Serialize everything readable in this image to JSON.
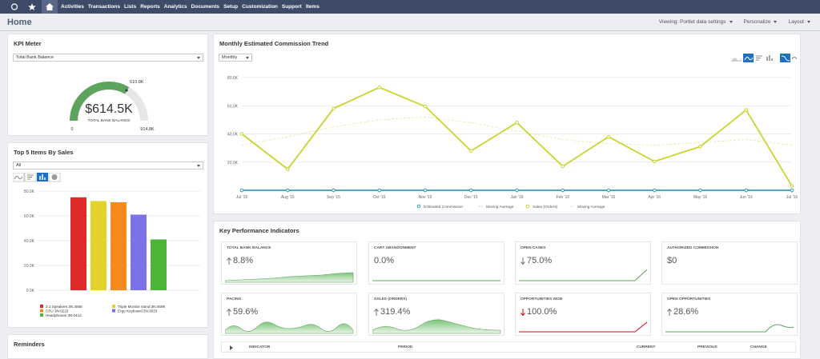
{
  "nav": {
    "items": [
      "Activities",
      "Transactions",
      "Lists",
      "Reports",
      "Analytics",
      "Documents",
      "Setup",
      "Customization",
      "Support",
      "Items"
    ]
  },
  "header": {
    "title": "Home",
    "controls": [
      "Viewing: Portlet data settings",
      "Personalize",
      "Layout"
    ]
  },
  "kpi_meter": {
    "title": "KPI Meter",
    "select": "Total Bank Balance",
    "gauge": {
      "min": 0,
      "max": {
        "value": 914.8,
        "label": "914.8K"
      },
      "value": {
        "value": 614.5,
        "label": "$614.5K"
      },
      "target": {
        "value": 610.8,
        "label": "610.8K"
      },
      "caption": "TOTAL BANK BALANCE",
      "color": "#5ea35b"
    }
  },
  "top_items": {
    "title": "Top 5 Items By Sales",
    "select": "All"
  },
  "commission": {
    "title": "Monthly Estimated Commission Trend",
    "select": "Monthly"
  },
  "chart_data": [
    {
      "type": "bar",
      "categories": [
        "2.1 Speakers 3N:4868",
        "Triple Monitor stand 3N:4698",
        "CPU 3N:0223",
        "Ergo Keyboard 3N:3033",
        "Headphones 3N:0412"
      ],
      "values": [
        75000,
        72000,
        71000,
        61000,
        41000
      ],
      "colors": [
        "#e02a2a",
        "#e3d22c",
        "#f58a1f",
        "#7b72e8",
        "#4bb53a"
      ],
      "ylim": [
        0,
        80000
      ],
      "yticks": [
        {
          "value": 0,
          "label": "0.0K"
        },
        {
          "value": 20000,
          "label": "20.0K"
        },
        {
          "value": 40000,
          "label": "40.0K"
        },
        {
          "value": 60000,
          "label": "60.0K"
        },
        {
          "value": 80000,
          "label": "80.0K"
        }
      ],
      "grid": true
    },
    {
      "type": "line",
      "categories": [
        "Jul '15",
        "Aug '15",
        "Sep '15",
        "Oct '15",
        "Nov '15",
        "Dec '15",
        "Jan '16",
        "Feb '16",
        "Mar '16",
        "Apr '16",
        "May '16",
        "Jun '16",
        "Jul '16"
      ],
      "series": [
        {
          "name": "Estimated Commission",
          "color": "#3a9ab5",
          "marker": true,
          "dashed": false,
          "values": [
            0,
            0,
            0,
            0,
            0,
            0,
            0,
            0,
            0,
            0,
            0,
            0,
            0
          ]
        },
        {
          "name": "Moving Average",
          "color": "#a9d7e4",
          "marker": false,
          "dashed": true,
          "values": [
            0,
            0,
            0,
            0,
            0,
            0,
            0,
            0,
            0,
            0,
            0,
            0,
            0
          ]
        },
        {
          "name": "Sales (Orders)",
          "color": "#c9d42b",
          "marker": true,
          "dashed": false,
          "values": [
            40000,
            15000,
            58000,
            73000,
            59500,
            28000,
            48000,
            17000,
            38000,
            20500,
            31000,
            57000,
            3000
          ]
        },
        {
          "name": "Moving Average",
          "color": "#e3e7a6",
          "marker": false,
          "dashed": true,
          "values": [
            32000,
            38000,
            45000,
            50000,
            52000,
            48000,
            42000,
            36000,
            33000,
            32000,
            34000,
            36000,
            32000
          ]
        }
      ],
      "ylim": [
        0,
        80000
      ],
      "yticks": [
        {
          "value": 20000,
          "label": "20.0K"
        },
        {
          "value": 40000,
          "label": "40.0K"
        },
        {
          "value": 60000,
          "label": "60.0K"
        },
        {
          "value": 80000,
          "label": "80.0K"
        }
      ],
      "grid": true
    }
  ],
  "kpis": {
    "title": "Key Performance Indicators",
    "tiles": [
      {
        "label": "TOTAL BANK BALANCE",
        "value": "8.8%",
        "trend": "up",
        "arrow_color": "#777777"
      },
      {
        "label": "CART ABANDONMENT",
        "value": "0.0%",
        "trend": "none",
        "arrow_color": "#777777"
      },
      {
        "label": "OPEN CASES",
        "value": "75.0%",
        "trend": "down",
        "arrow_color": "#777777"
      },
      {
        "label": "AUTHORIZED COMMISSION",
        "value": "$0",
        "trend": "none",
        "arrow_color": "#777777"
      },
      {
        "label": "PACING",
        "value": "59.6%",
        "trend": "up",
        "arrow_color": "#777777"
      },
      {
        "label": "SALES (ORDERS)",
        "value": "319.4%",
        "trend": "up",
        "arrow_color": "#777777"
      },
      {
        "label": "OPPORTUNITIES WON",
        "value": "100.0%",
        "trend": "down",
        "arrow_color": "#d0021b"
      },
      {
        "label": "OPEN OPPORTUNITIES",
        "value": "28.6%",
        "trend": "up",
        "arrow_color": "#777777"
      }
    ],
    "table_headers": [
      "INDICATOR",
      "PERIOD",
      "CURRENT",
      "PREVIOUS",
      "CHANGE"
    ]
  },
  "reminders": {
    "title": "Reminders"
  }
}
